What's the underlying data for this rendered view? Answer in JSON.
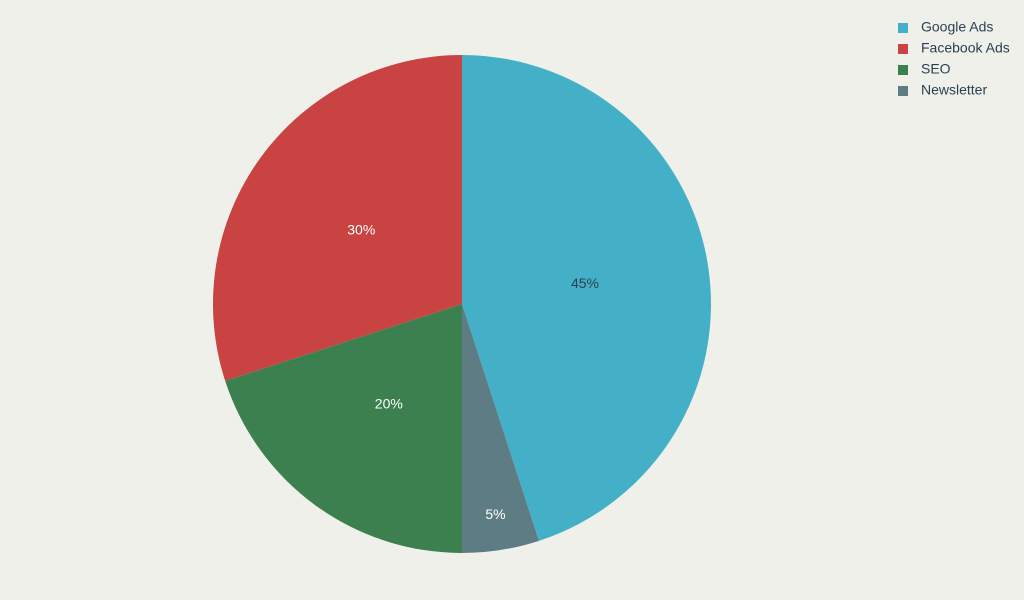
{
  "chart_data": {
    "type": "pie",
    "categories": [
      "Google Ads",
      "Facebook Ads",
      "SEO",
      "Newsletter"
    ],
    "values": [
      45,
      30,
      20,
      5
    ],
    "value_labels": [
      "45%",
      "30%",
      "20%",
      "5%"
    ],
    "colors": [
      "#44b0c8",
      "#c94343",
      "#3c8050",
      "#5e7c84"
    ],
    "legend": "top-right"
  }
}
